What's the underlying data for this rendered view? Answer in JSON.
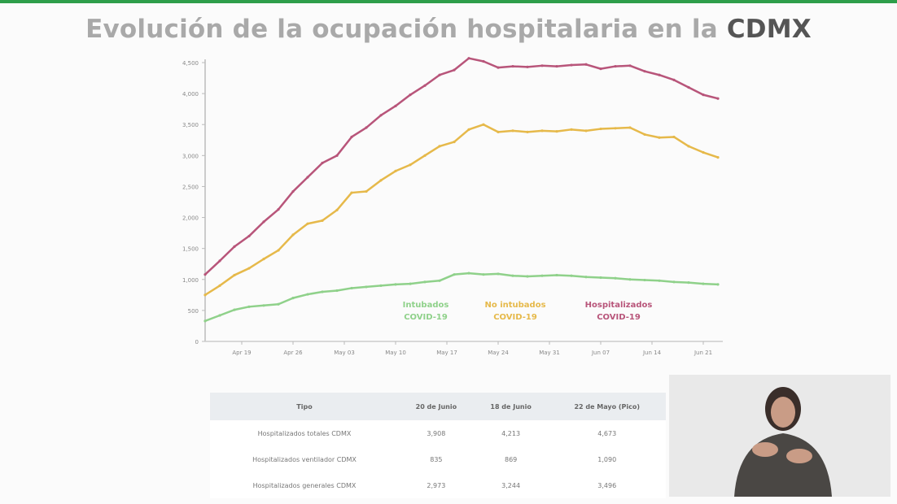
{
  "slide": {
    "title_prefix": "Evolución de la ocupación hospitalaria en la ",
    "title_bold": "CDMX",
    "accent": "#2e9e4a"
  },
  "chart_data": {
    "type": "line",
    "title": "",
    "xlabel": "",
    "ylabel": "",
    "ylim": [
      0,
      4500
    ],
    "yticks": [
      0,
      500,
      1000,
      1500,
      2000,
      2500,
      3000,
      3500,
      4000,
      4500
    ],
    "ytick_labels": [
      "0",
      "500",
      "1,000",
      "1,500",
      "2,000",
      "2,500",
      "3,000",
      "3,500",
      "4,000",
      "4,500"
    ],
    "xtick_labels": [
      "Apr 19",
      "Apr 26",
      "May 03",
      "May 10",
      "May 17",
      "May 24",
      "May 31",
      "Jun 07",
      "Jun 14",
      "Jun 21"
    ],
    "x_start": "Apr 14",
    "x_step_days": 2,
    "grid": false,
    "legend_position": "bottom-center",
    "series": [
      {
        "name": "Intubados COVID-19",
        "color": "#8fd18a",
        "values": [
          330,
          420,
          510,
          560,
          580,
          600,
          700,
          760,
          800,
          820,
          860,
          880,
          900,
          920,
          930,
          960,
          980,
          1080,
          1100,
          1080,
          1090,
          1060,
          1050,
          1060,
          1070,
          1060,
          1040,
          1030,
          1020,
          1000,
          990,
          980,
          960,
          950,
          930,
          920
        ]
      },
      {
        "name": "No intubados COVID-19",
        "color": "#e6b94a",
        "values": [
          750,
          900,
          1070,
          1180,
          1330,
          1470,
          1720,
          1900,
          1950,
          2120,
          2400,
          2420,
          2600,
          2750,
          2850,
          3000,
          3150,
          3220,
          3420,
          3500,
          3380,
          3400,
          3380,
          3400,
          3390,
          3420,
          3400,
          3430,
          3440,
          3450,
          3340,
          3290,
          3300,
          3150,
          3050,
          2970
        ]
      },
      {
        "name": "Hospitalizados COVID-19",
        "color": "#b8557a",
        "values": [
          1080,
          1300,
          1530,
          1700,
          1930,
          2130,
          2420,
          2650,
          2880,
          3000,
          3300,
          3450,
          3650,
          3800,
          3980,
          4130,
          4300,
          4380,
          4570,
          4520,
          4420,
          4440,
          4430,
          4450,
          4440,
          4460,
          4470,
          4400,
          4440,
          4450,
          4360,
          4300,
          4220,
          4100,
          3980,
          3920
        ]
      }
    ],
    "legend": [
      {
        "line1": "Intubados",
        "line2": "COVID-19",
        "color": "#8fd18a"
      },
      {
        "line1": "No intubados",
        "line2": "COVID-19",
        "color": "#e6b94a"
      },
      {
        "line1": "Hospitalizados",
        "line2": "COVID-19",
        "color": "#b8557a"
      }
    ]
  },
  "table": {
    "headers": [
      "Tipo",
      "20 de Junio",
      "18 de Junio",
      "22 de Mayo (Pico)"
    ],
    "rows": [
      [
        "Hospitalizados totales CDMX",
        "3,908",
        "4,213",
        "4,673"
      ],
      [
        "Hospitalizados ventilador CDMX",
        "835",
        "869",
        "1,090"
      ],
      [
        "Hospitalizados generales CDMX",
        "2,973",
        "3,244",
        "3,496"
      ]
    ]
  }
}
